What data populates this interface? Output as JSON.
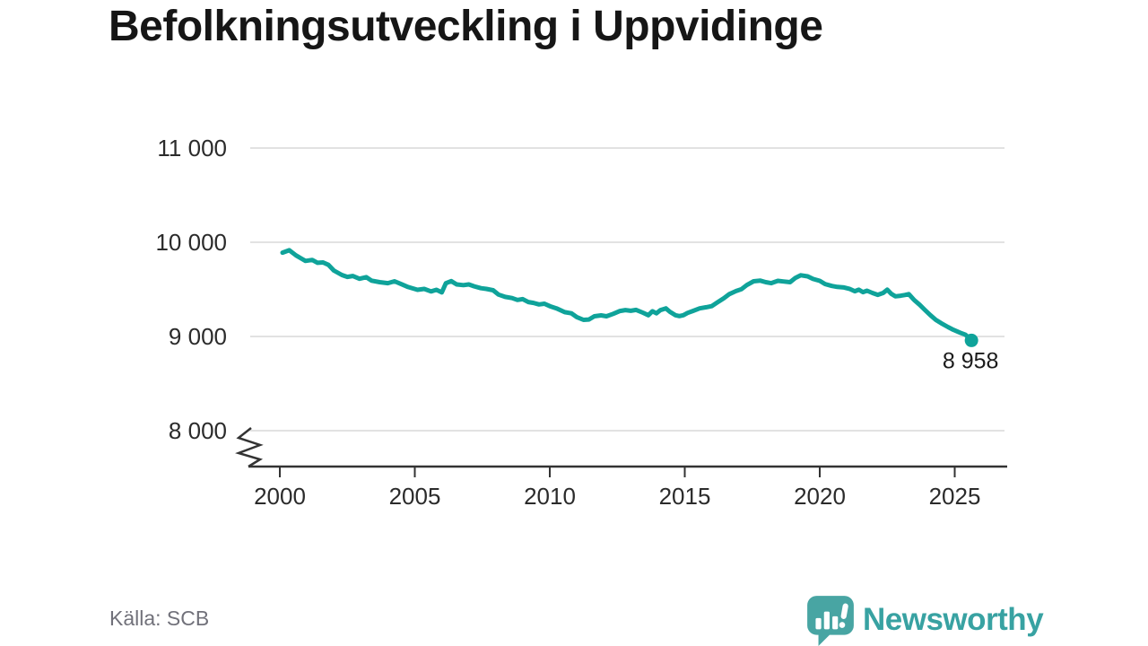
{
  "title": "Befolkningsutveckling i Uppvidinge",
  "source": "Källa: SCB",
  "branding": {
    "name": "Newsworthy"
  },
  "colors": {
    "line": "#0fa39a",
    "grid": "#e2e2e2",
    "axis": "#333333",
    "tick_label": "#2b2b2b",
    "title": "#161616",
    "source": "#71717a",
    "end_label": "#1b1b1b",
    "brand_bubble": "#48a5a3",
    "brand_text": "#38a2a2"
  },
  "chart_data": {
    "type": "line",
    "title": "Befolkningsutveckling i Uppvidinge",
    "xlabel": "",
    "ylabel": "",
    "xlim": [
      1999,
      2027
    ],
    "ylim": [
      8000,
      11000
    ],
    "axis_break": true,
    "grid": "horizontal",
    "legend": "none",
    "x_ticks": [
      2000,
      2005,
      2010,
      2015,
      2020,
      2025
    ],
    "x_tick_labels": [
      "2000",
      "2005",
      "2010",
      "2015",
      "2020",
      "2025"
    ],
    "y_ticks": [
      11000,
      10000,
      9000,
      8000
    ],
    "y_tick_labels": [
      "11 000",
      "10 000",
      "9 000",
      "8 000"
    ],
    "end_label": "8 958",
    "end_value": 8958,
    "series": [
      {
        "name": "Befolkning",
        "points": [
          [
            2000.1,
            9890
          ],
          [
            2000.35,
            9915
          ],
          [
            2000.6,
            9860
          ],
          [
            2000.78,
            9830
          ],
          [
            2000.95,
            9802
          ],
          [
            2001.2,
            9812
          ],
          [
            2001.4,
            9782
          ],
          [
            2001.6,
            9786
          ],
          [
            2001.8,
            9760
          ],
          [
            2002.0,
            9700
          ],
          [
            2002.3,
            9652
          ],
          [
            2002.5,
            9632
          ],
          [
            2002.7,
            9642
          ],
          [
            2002.95,
            9612
          ],
          [
            2003.2,
            9630
          ],
          [
            2003.4,
            9592
          ],
          [
            2003.7,
            9576
          ],
          [
            2004.0,
            9566
          ],
          [
            2004.25,
            9586
          ],
          [
            2004.5,
            9555
          ],
          [
            2004.75,
            9525
          ],
          [
            2005.1,
            9495
          ],
          [
            2005.35,
            9505
          ],
          [
            2005.6,
            9478
          ],
          [
            2005.8,
            9495
          ],
          [
            2006.0,
            9468
          ],
          [
            2006.15,
            9565
          ],
          [
            2006.35,
            9588
          ],
          [
            2006.55,
            9552
          ],
          [
            2006.8,
            9545
          ],
          [
            2007.0,
            9552
          ],
          [
            2007.2,
            9532
          ],
          [
            2007.45,
            9512
          ],
          [
            2007.65,
            9505
          ],
          [
            2007.9,
            9490
          ],
          [
            2008.1,
            9445
          ],
          [
            2008.35,
            9420
          ],
          [
            2008.6,
            9408
          ],
          [
            2008.8,
            9388
          ],
          [
            2009.0,
            9396
          ],
          [
            2009.2,
            9366
          ],
          [
            2009.4,
            9356
          ],
          [
            2009.6,
            9340
          ],
          [
            2009.8,
            9348
          ],
          [
            2010.0,
            9322
          ],
          [
            2010.25,
            9298
          ],
          [
            2010.55,
            9258
          ],
          [
            2010.8,
            9246
          ],
          [
            2011.0,
            9206
          ],
          [
            2011.25,
            9176
          ],
          [
            2011.45,
            9180
          ],
          [
            2011.65,
            9214
          ],
          [
            2011.9,
            9224
          ],
          [
            2012.1,
            9214
          ],
          [
            2012.35,
            9240
          ],
          [
            2012.6,
            9270
          ],
          [
            2012.8,
            9280
          ],
          [
            2013.0,
            9272
          ],
          [
            2013.2,
            9282
          ],
          [
            2013.45,
            9252
          ],
          [
            2013.65,
            9226
          ],
          [
            2013.8,
            9268
          ],
          [
            2013.95,
            9246
          ],
          [
            2014.1,
            9280
          ],
          [
            2014.3,
            9298
          ],
          [
            2014.45,
            9262
          ],
          [
            2014.65,
            9226
          ],
          [
            2014.8,
            9216
          ],
          [
            2014.95,
            9226
          ],
          [
            2015.1,
            9250
          ],
          [
            2015.3,
            9270
          ],
          [
            2015.55,
            9298
          ],
          [
            2015.8,
            9310
          ],
          [
            2016.0,
            9322
          ],
          [
            2016.2,
            9360
          ],
          [
            2016.45,
            9406
          ],
          [
            2016.65,
            9450
          ],
          [
            2016.9,
            9482
          ],
          [
            2017.1,
            9502
          ],
          [
            2017.3,
            9546
          ],
          [
            2017.55,
            9586
          ],
          [
            2017.8,
            9592
          ],
          [
            2018.0,
            9576
          ],
          [
            2018.2,
            9566
          ],
          [
            2018.45,
            9590
          ],
          [
            2018.65,
            9584
          ],
          [
            2018.9,
            9576
          ],
          [
            2019.1,
            9622
          ],
          [
            2019.3,
            9650
          ],
          [
            2019.55,
            9638
          ],
          [
            2019.75,
            9610
          ],
          [
            2020.0,
            9590
          ],
          [
            2020.2,
            9556
          ],
          [
            2020.45,
            9536
          ],
          [
            2020.65,
            9526
          ],
          [
            2020.9,
            9520
          ],
          [
            2021.1,
            9506
          ],
          [
            2021.3,
            9480
          ],
          [
            2021.45,
            9496
          ],
          [
            2021.6,
            9470
          ],
          [
            2021.75,
            9486
          ],
          [
            2021.95,
            9462
          ],
          [
            2022.15,
            9442
          ],
          [
            2022.35,
            9462
          ],
          [
            2022.5,
            9496
          ],
          [
            2022.65,
            9452
          ],
          [
            2022.8,
            9426
          ],
          [
            2023.0,
            9432
          ],
          [
            2023.15,
            9440
          ],
          [
            2023.3,
            9450
          ],
          [
            2023.5,
            9386
          ],
          [
            2023.7,
            9336
          ],
          [
            2023.9,
            9280
          ],
          [
            2024.1,
            9226
          ],
          [
            2024.3,
            9176
          ],
          [
            2024.5,
            9140
          ],
          [
            2024.75,
            9100
          ],
          [
            2024.95,
            9070
          ],
          [
            2025.2,
            9040
          ],
          [
            2025.4,
            9018
          ],
          [
            2025.62,
            8958
          ]
        ]
      }
    ]
  }
}
